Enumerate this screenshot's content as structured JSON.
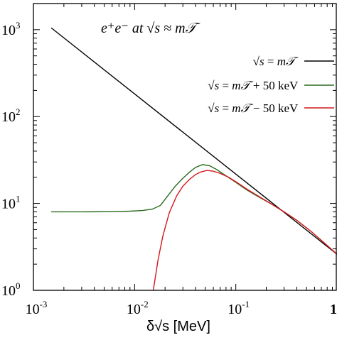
{
  "chart_data": {
    "type": "line",
    "title": "e⁺e⁻ at √s ≈ m𝒯",
    "xlabel": "δ√s [MeV]",
    "ylabel": "",
    "xscale": "log",
    "yscale": "log",
    "xlim": [
      0.001,
      1
    ],
    "ylim": [
      1,
      2000
    ],
    "x_ticks": [
      {
        "mant": "10",
        "exp": "-3"
      },
      {
        "mant": "10",
        "exp": "-2"
      },
      {
        "mant": "10",
        "exp": "-1"
      },
      {
        "mant": "1",
        "exp": ""
      }
    ],
    "y_ticks": [
      {
        "mant": "10",
        "exp": "0"
      },
      {
        "mant": "10",
        "exp": "1"
      },
      {
        "mant": "10",
        "exp": "2"
      },
      {
        "mant": "10",
        "exp": "3"
      }
    ],
    "legend_position": "top-right",
    "series": [
      {
        "name": "√s = m𝒯",
        "color": "#000000",
        "points": [
          [
            0.0015,
            1050
          ],
          [
            1.0,
            2.6
          ]
        ]
      },
      {
        "name": "√s = m𝒯 + 50 keV",
        "color": "#2a6b1d",
        "points": [
          [
            0.0015,
            8.0
          ],
          [
            0.003,
            8.0
          ],
          [
            0.006,
            8.05
          ],
          [
            0.009,
            8.15
          ],
          [
            0.012,
            8.3
          ],
          [
            0.015,
            8.6
          ],
          [
            0.018,
            9.5
          ],
          [
            0.021,
            12.0
          ],
          [
            0.025,
            15.6
          ],
          [
            0.03,
            19.5
          ],
          [
            0.035,
            23.0
          ],
          [
            0.04,
            26.0
          ],
          [
            0.047,
            28.0
          ],
          [
            0.055,
            27.2
          ],
          [
            0.065,
            24.5
          ],
          [
            0.08,
            20.8
          ],
          [
            0.1,
            17.5
          ],
          [
            0.13,
            14.2
          ],
          [
            0.17,
            11.8
          ],
          [
            0.22,
            10.0
          ],
          [
            0.3,
            8.0
          ],
          [
            0.4,
            6.4
          ],
          [
            0.55,
            4.8
          ],
          [
            0.75,
            3.5
          ],
          [
            1.0,
            2.6
          ]
        ]
      },
      {
        "name": "√s = m𝒯 − 50 keV",
        "color": "#d4161c",
        "points": [
          [
            0.0145,
            0.7
          ],
          [
            0.0155,
            1.1
          ],
          [
            0.017,
            2.2
          ],
          [
            0.019,
            4.2
          ],
          [
            0.022,
            7.8
          ],
          [
            0.026,
            12.2
          ],
          [
            0.03,
            15.8
          ],
          [
            0.035,
            19.0
          ],
          [
            0.04,
            21.5
          ],
          [
            0.045,
            23.0
          ],
          [
            0.052,
            24.0
          ],
          [
            0.06,
            23.5
          ],
          [
            0.07,
            22.2
          ],
          [
            0.085,
            20.0
          ],
          [
            0.1,
            17.8
          ],
          [
            0.13,
            14.5
          ],
          [
            0.17,
            12.0
          ],
          [
            0.22,
            10.0
          ],
          [
            0.3,
            8.0
          ],
          [
            0.4,
            6.4
          ],
          [
            0.55,
            4.8
          ],
          [
            0.75,
            3.5
          ],
          [
            1.0,
            2.6
          ]
        ]
      }
    ],
    "legend": [
      {
        "lhs": "√s",
        "eq": "=",
        "rhs": "m𝒯",
        "tail": ""
      },
      {
        "lhs": "√s",
        "eq": "=",
        "rhs": "m𝒯",
        "tail": "+ 50 keV"
      },
      {
        "lhs": "√s",
        "eq": "=",
        "rhs": "m𝒯",
        "tail": "− 50 keV"
      }
    ]
  }
}
